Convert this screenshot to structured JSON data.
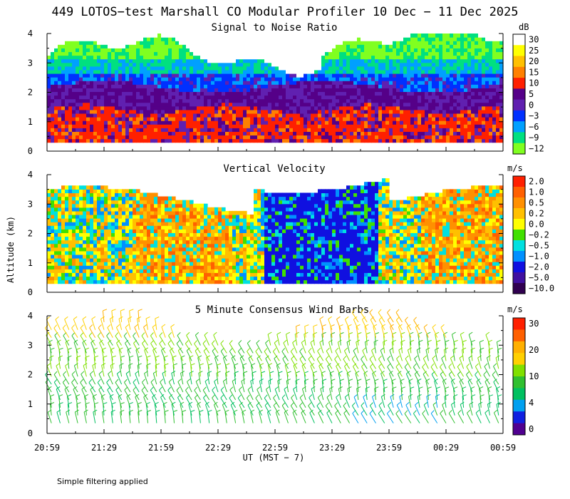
{
  "chart_data": {
    "type": "heatmap",
    "title": "449 LOTOS−test Marshall CO Modular Profiler 10 Dec − 11 Dec 2025",
    "ylabel": "Altitude (km)",
    "xlabel": "UT  (MST − 7)",
    "footnote": "Simple filtering applied",
    "x_tick_labels": [
      "20:59",
      "21:29",
      "21:59",
      "22:29",
      "22:59",
      "23:29",
      "23:59",
      "00:29",
      "00:59"
    ],
    "x_range_minutes": [
      0,
      240
    ],
    "y_range_km": [
      0,
      4
    ],
    "y_tick_labels": [
      "0",
      "1",
      "2",
      "3",
      "4"
    ],
    "panels": [
      {
        "title": "Signal to Noise Ratio",
        "kind": "heatmap",
        "unit": "dB",
        "colorbar_labels": [
          "30",
          "25",
          "20",
          "15",
          "10",
          "5",
          "0",
          "−3",
          "−6",
          "−9",
          "−12"
        ],
        "colorbar_colors": [
          "#ffffff",
          "#ffff00",
          "#ffc000",
          "#ff8000",
          "#ff2000",
          "#550088",
          "#6020b0",
          "#0030ff",
          "#00a0ff",
          "#00e080",
          "#80ff20"
        ],
        "approx_profile_by_altitude_km": {
          "0.3-1.5": "10 to 15 dB",
          "1.5-2.3": "0 to 5 dB",
          "2.3-3.0": "-3 to -9 dB",
          "3.0-4.0": "-9 to -12 dB"
        }
      },
      {
        "title": "Vertical Velocity",
        "kind": "heatmap",
        "unit": "m/s",
        "colorbar_labels": [
          "2.0",
          "1.0",
          "0.5",
          "0.2",
          "0.0",
          "−0.2",
          "−0.5",
          "−1.0",
          "−2.0",
          "−5.0",
          "−10.0"
        ],
        "colorbar_colors": [
          "#ff2000",
          "#ff6000",
          "#ff9000",
          "#ffc000",
          "#ffff00",
          "#40e000",
          "#00e0e0",
          "#0090ff",
          "#1010e0",
          "#4010a0",
          "#300050"
        ],
        "approx_description": "mostly -0.5 to 0.5 m/s; strong downdraft near 22:45 to 23:40 about -2 m/s"
      },
      {
        "title": "5 Minute Consensus Wind Barbs",
        "kind": "wind_barbs",
        "unit": "m/s",
        "colorbar_labels": [
          "30",
          "20",
          "10",
          "4",
          "0"
        ],
        "colorbar_colors": [
          "#ff2000",
          "#ff6000",
          "#ffb000",
          "#ffd000",
          "#80e000",
          "#30c030",
          "#00c060",
          "#00a0f0",
          "#1020e0",
          "#500090"
        ],
        "approx_speed_by_altitude_km": {
          "0.3-1.5": "4 to 10 m/s",
          "1.5-3.0": "10 to 15 m/s",
          "3.0-4.0": "15 to 20 m/s"
        }
      }
    ]
  }
}
